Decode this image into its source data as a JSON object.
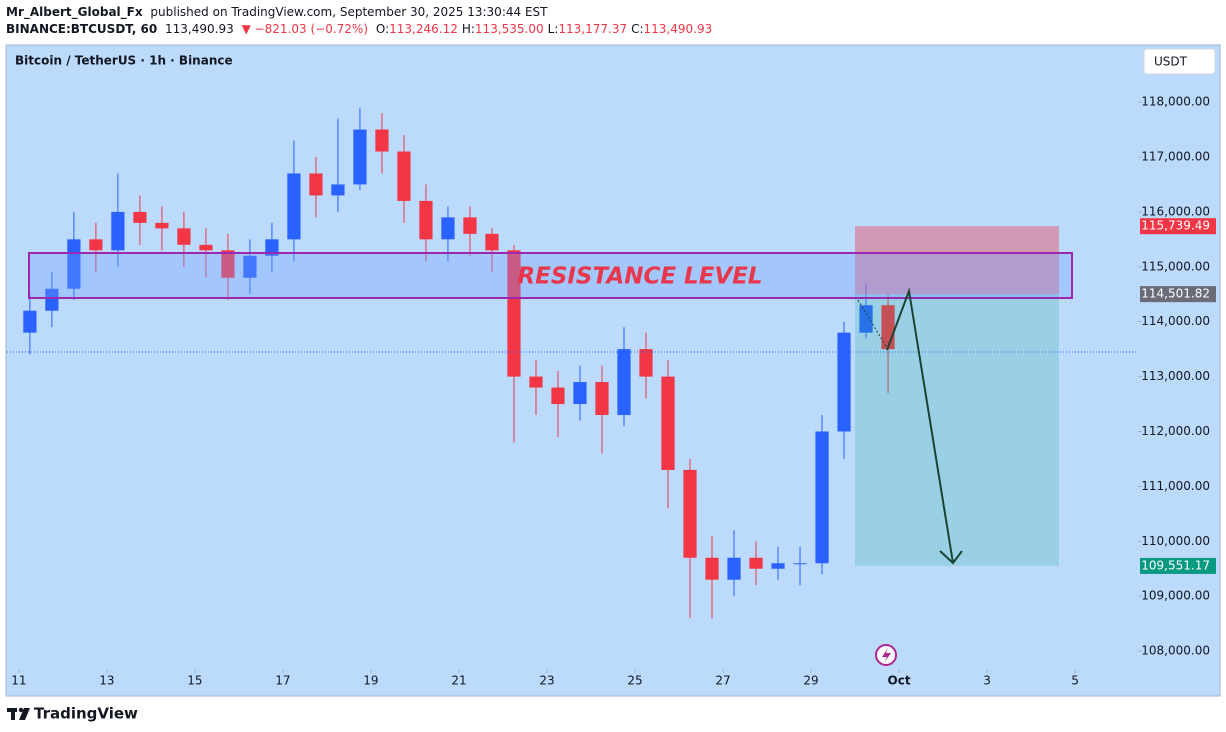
{
  "header": {
    "author": "Mr_Albert_Global_Fx",
    "published": "published on TradingView.com, September 30, 2025 13:30:44 EST",
    "symbol": "BINANCE:BTCUSDT, 60",
    "price": "113,490.93",
    "change": "▼ −821.03 (−0.72%)",
    "ohlc": [
      {
        "key": "O:",
        "value": "113,246.12"
      },
      {
        "key": "H:",
        "value": "113,535.00"
      },
      {
        "key": "L:",
        "value": "113,177.37"
      },
      {
        "key": "C:",
        "value": "113,490.93"
      }
    ]
  },
  "chart_data": {
    "type": "candlestick",
    "title": "Bitcoin / TetherUS · 1h · Binance",
    "currency": "USDT",
    "annotation": "RESISTANCE LEVEL",
    "x": [
      0.25,
      0.75,
      1.25,
      1.75,
      2.25,
      2.75,
      3.25,
      3.75,
      4.25,
      4.75,
      5.25,
      5.75,
      6.25,
      6.75,
      7.25,
      7.75,
      8.25,
      8.75,
      9.25,
      9.75,
      10.25,
      10.75,
      11.25,
      11.75,
      12.25,
      12.75,
      13.25,
      13.75,
      14.25,
      14.75,
      15.25,
      15.75,
      16.25,
      16.75,
      17.25,
      17.75,
      18.25,
      18.75,
      19.25,
      19.75
    ],
    "open": [
      113800,
      114200,
      114600,
      115500,
      115300,
      116000,
      115800,
      115700,
      115400,
      115300,
      114800,
      115200,
      115500,
      116700,
      116300,
      116500,
      117500,
      117100,
      116200,
      115500,
      115900,
      115600,
      115300,
      113000,
      112800,
      112500,
      112900,
      112300,
      113500,
      113000,
      111300,
      109700,
      109300,
      109700,
      109500,
      109600,
      109600,
      112000,
      113800,
      114300
    ],
    "high": [
      114500,
      114900,
      116000,
      115800,
      116700,
      116300,
      116100,
      116000,
      115700,
      115600,
      115500,
      115800,
      117300,
      117000,
      117700,
      117900,
      117800,
      117400,
      116500,
      116100,
      116100,
      115700,
      115400,
      113300,
      113100,
      113200,
      113200,
      113900,
      113800,
      113300,
      111500,
      110100,
      110200,
      110000,
      109900,
      109900,
      112300,
      114000,
      114700,
      114500
    ],
    "low": [
      113400,
      113900,
      114400,
      114900,
      115000,
      115400,
      115300,
      115000,
      114800,
      114400,
      114500,
      114900,
      115100,
      115900,
      116000,
      116400,
      116700,
      115800,
      115100,
      115100,
      115200,
      114900,
      111800,
      112300,
      111900,
      112200,
      111600,
      112100,
      112600,
      110600,
      108600,
      108600,
      109000,
      109200,
      109300,
      109200,
      109400,
      111500,
      113700,
      112700
    ],
    "close": [
      114200,
      114600,
      115500,
      115300,
      116000,
      115800,
      115700,
      115400,
      115300,
      114800,
      115200,
      115500,
      116700,
      116300,
      116500,
      117500,
      117100,
      116200,
      115500,
      115900,
      115600,
      115300,
      113000,
      112800,
      112500,
      112900,
      112300,
      113500,
      113000,
      111300,
      109700,
      109300,
      109700,
      109500,
      109600,
      109600,
      112000,
      113800,
      114300,
      113500
    ],
    "up_color": "#2962ff",
    "down_color": "#f23645",
    "grid": false,
    "xlim": [
      -0.27,
      25.43
    ],
    "ylim": [
      107200,
      119040
    ],
    "xticks": [
      {
        "value": 0,
        "label": "11"
      },
      {
        "value": 2,
        "label": "13"
      },
      {
        "value": 4,
        "label": "15"
      },
      {
        "value": 6,
        "label": "17"
      },
      {
        "value": 8,
        "label": "19"
      },
      {
        "value": 10,
        "label": "21"
      },
      {
        "value": 12,
        "label": "23"
      },
      {
        "value": 14,
        "label": "25"
      },
      {
        "value": 16,
        "label": "27"
      },
      {
        "value": 18,
        "label": "29"
      },
      {
        "value": 20,
        "label": "Oct"
      },
      {
        "value": 22,
        "label": "3"
      },
      {
        "value": 24,
        "label": "5"
      }
    ],
    "yticks": [
      {
        "value": 108000,
        "label": "108,000.00"
      },
      {
        "value": 109000,
        "label": "109,000.00"
      },
      {
        "value": 110000,
        "label": "110,000.00"
      },
      {
        "value": 111000,
        "label": "111,000.00"
      },
      {
        "value": 112000,
        "label": "112,000.00"
      },
      {
        "value": 113000,
        "label": "113,000.00"
      },
      {
        "value": 114000,
        "label": "114,000.00"
      },
      {
        "value": 115000,
        "label": "115,000.00"
      },
      {
        "value": 116000,
        "label": "116,000.00"
      },
      {
        "value": 117000,
        "label": "117,000.00"
      },
      {
        "value": 118000,
        "label": "118,000.00"
      }
    ],
    "price_labels": [
      {
        "value": 115739.49,
        "label": "115,739.49",
        "color": "#f23645"
      },
      {
        "value": 114501.82,
        "label": "114,501.82",
        "color": "#6a6d78"
      },
      {
        "value": 109551.17,
        "label": "109,551.17",
        "color": "#089981"
      }
    ]
  },
  "footer": {
    "brand": "TradingView"
  }
}
